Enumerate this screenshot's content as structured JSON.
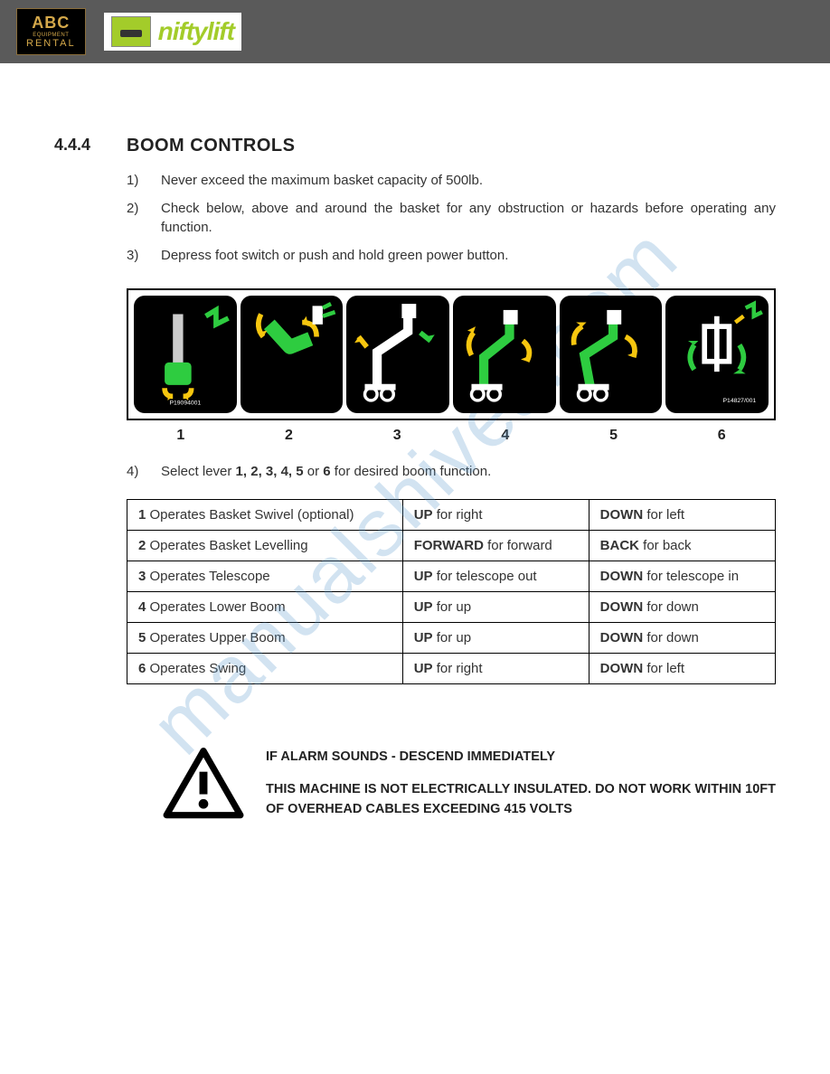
{
  "header": {
    "abc": {
      "top": "ABC",
      "mid": "EQUIPMENT",
      "bot": "RENTAL"
    },
    "nifty": "niftylift"
  },
  "section": {
    "number": "4.4.4",
    "title": "BOOM CONTROLS",
    "steps": [
      {
        "n": "1)",
        "t": "Never exceed the maximum basket capacity of 500lb."
      },
      {
        "n": "2)",
        "t": "Check below, above and around the basket for any obstruction or hazards before operating any function."
      },
      {
        "n": "3)",
        "t": "Depress foot switch or push and hold green power button."
      }
    ],
    "step4": {
      "n": "4)",
      "prefix": "Select lever ",
      "levers": "1, 2, 3, 4, 5",
      "mid": " or ",
      "last": "6",
      "suffix": " for desired boom function."
    }
  },
  "panels": {
    "labels": [
      "1",
      "2",
      "3",
      "4",
      "5",
      "6"
    ],
    "colors": {
      "bg": "#000000",
      "green": "#2ecc40",
      "yellow": "#f6c60f",
      "white": "#ffffff"
    },
    "codes": {
      "first": "P19094001",
      "last": "P14827/001"
    }
  },
  "table": {
    "rows": [
      {
        "num": "1",
        "desc": " Operates Basket Swivel (optional)",
        "upB": "UP",
        "upT": " for right",
        "dnB": "DOWN",
        "dnT": " for left"
      },
      {
        "num": "2",
        "desc": " Operates Basket Levelling",
        "upB": "FORWARD",
        "upT": " for forward",
        "dnB": "BACK",
        "dnT": " for back"
      },
      {
        "num": "3",
        "desc": " Operates Telescope",
        "upB": "UP",
        "upT": " for telescope out",
        "dnB": "DOWN",
        "dnT": " for telescope in"
      },
      {
        "num": "4",
        "desc": " Operates Lower Boom",
        "upB": "UP",
        "upT": " for up",
        "dnB": "DOWN",
        "dnT": " for down"
      },
      {
        "num": "5",
        "desc": " Operates Upper Boom",
        "upB": "UP",
        "upT": " for up",
        "dnB": "DOWN",
        "dnT": " for down"
      },
      {
        "num": "6",
        "desc": " Operates Swing",
        "upB": "UP",
        "upT": " for right",
        "dnB": "DOWN",
        "dnT": " for left"
      }
    ]
  },
  "warning": {
    "line1": "IF ALARM SOUNDS - DESCEND IMMEDIATELY",
    "line2": "THIS MACHINE IS NOT ELECTRICALLY INSULATED. DO NOT WORK WITHIN 10FT OF OVERHEAD CABLES EXCEEDING 415 VOLTS"
  },
  "watermark": "manualshives.com"
}
